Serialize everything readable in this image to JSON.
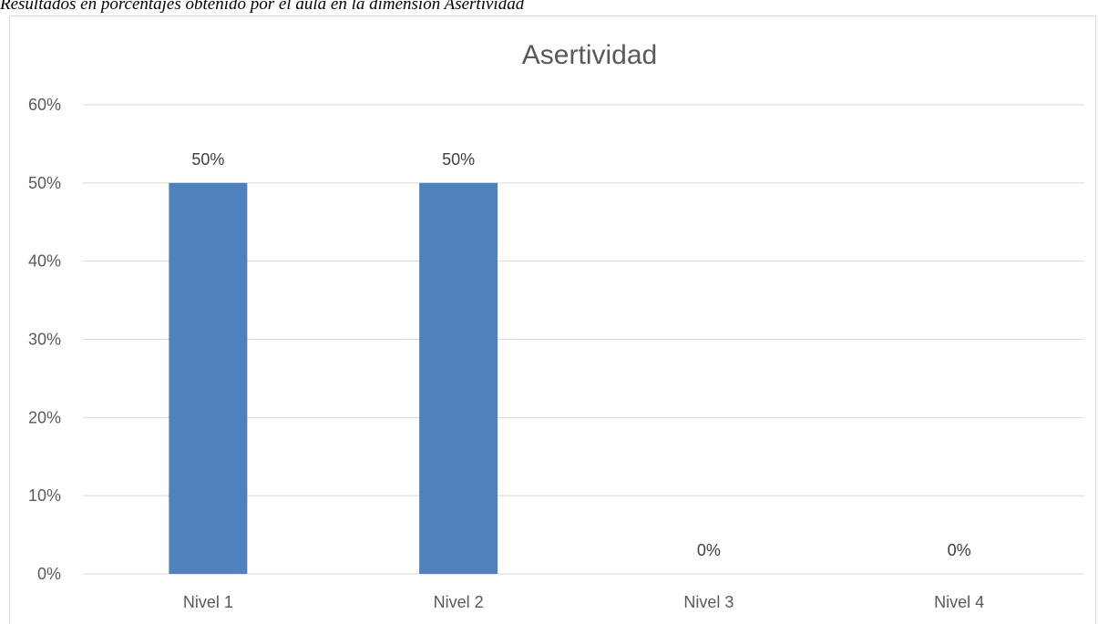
{
  "caption": "Resultados en porcentajes obtenido por el aula en la dimensión Asertividad",
  "chart_data": {
    "type": "bar",
    "title": "Asertividad",
    "categories": [
      "Nivel 1",
      "Nivel 2",
      "Nivel 3",
      "Nivel 4"
    ],
    "values": [
      0.5,
      0.5,
      0,
      0
    ],
    "data_labels": [
      "50%",
      "50%",
      "0%",
      "0%"
    ],
    "y_ticks": [
      "0%",
      "10%",
      "20%",
      "30%",
      "40%",
      "50%",
      "60%"
    ],
    "ylim": [
      0,
      0.6
    ],
    "grid": true,
    "legend": "none",
    "bar_color": "#4f81bd",
    "grid_color": "#d9d9d9"
  }
}
